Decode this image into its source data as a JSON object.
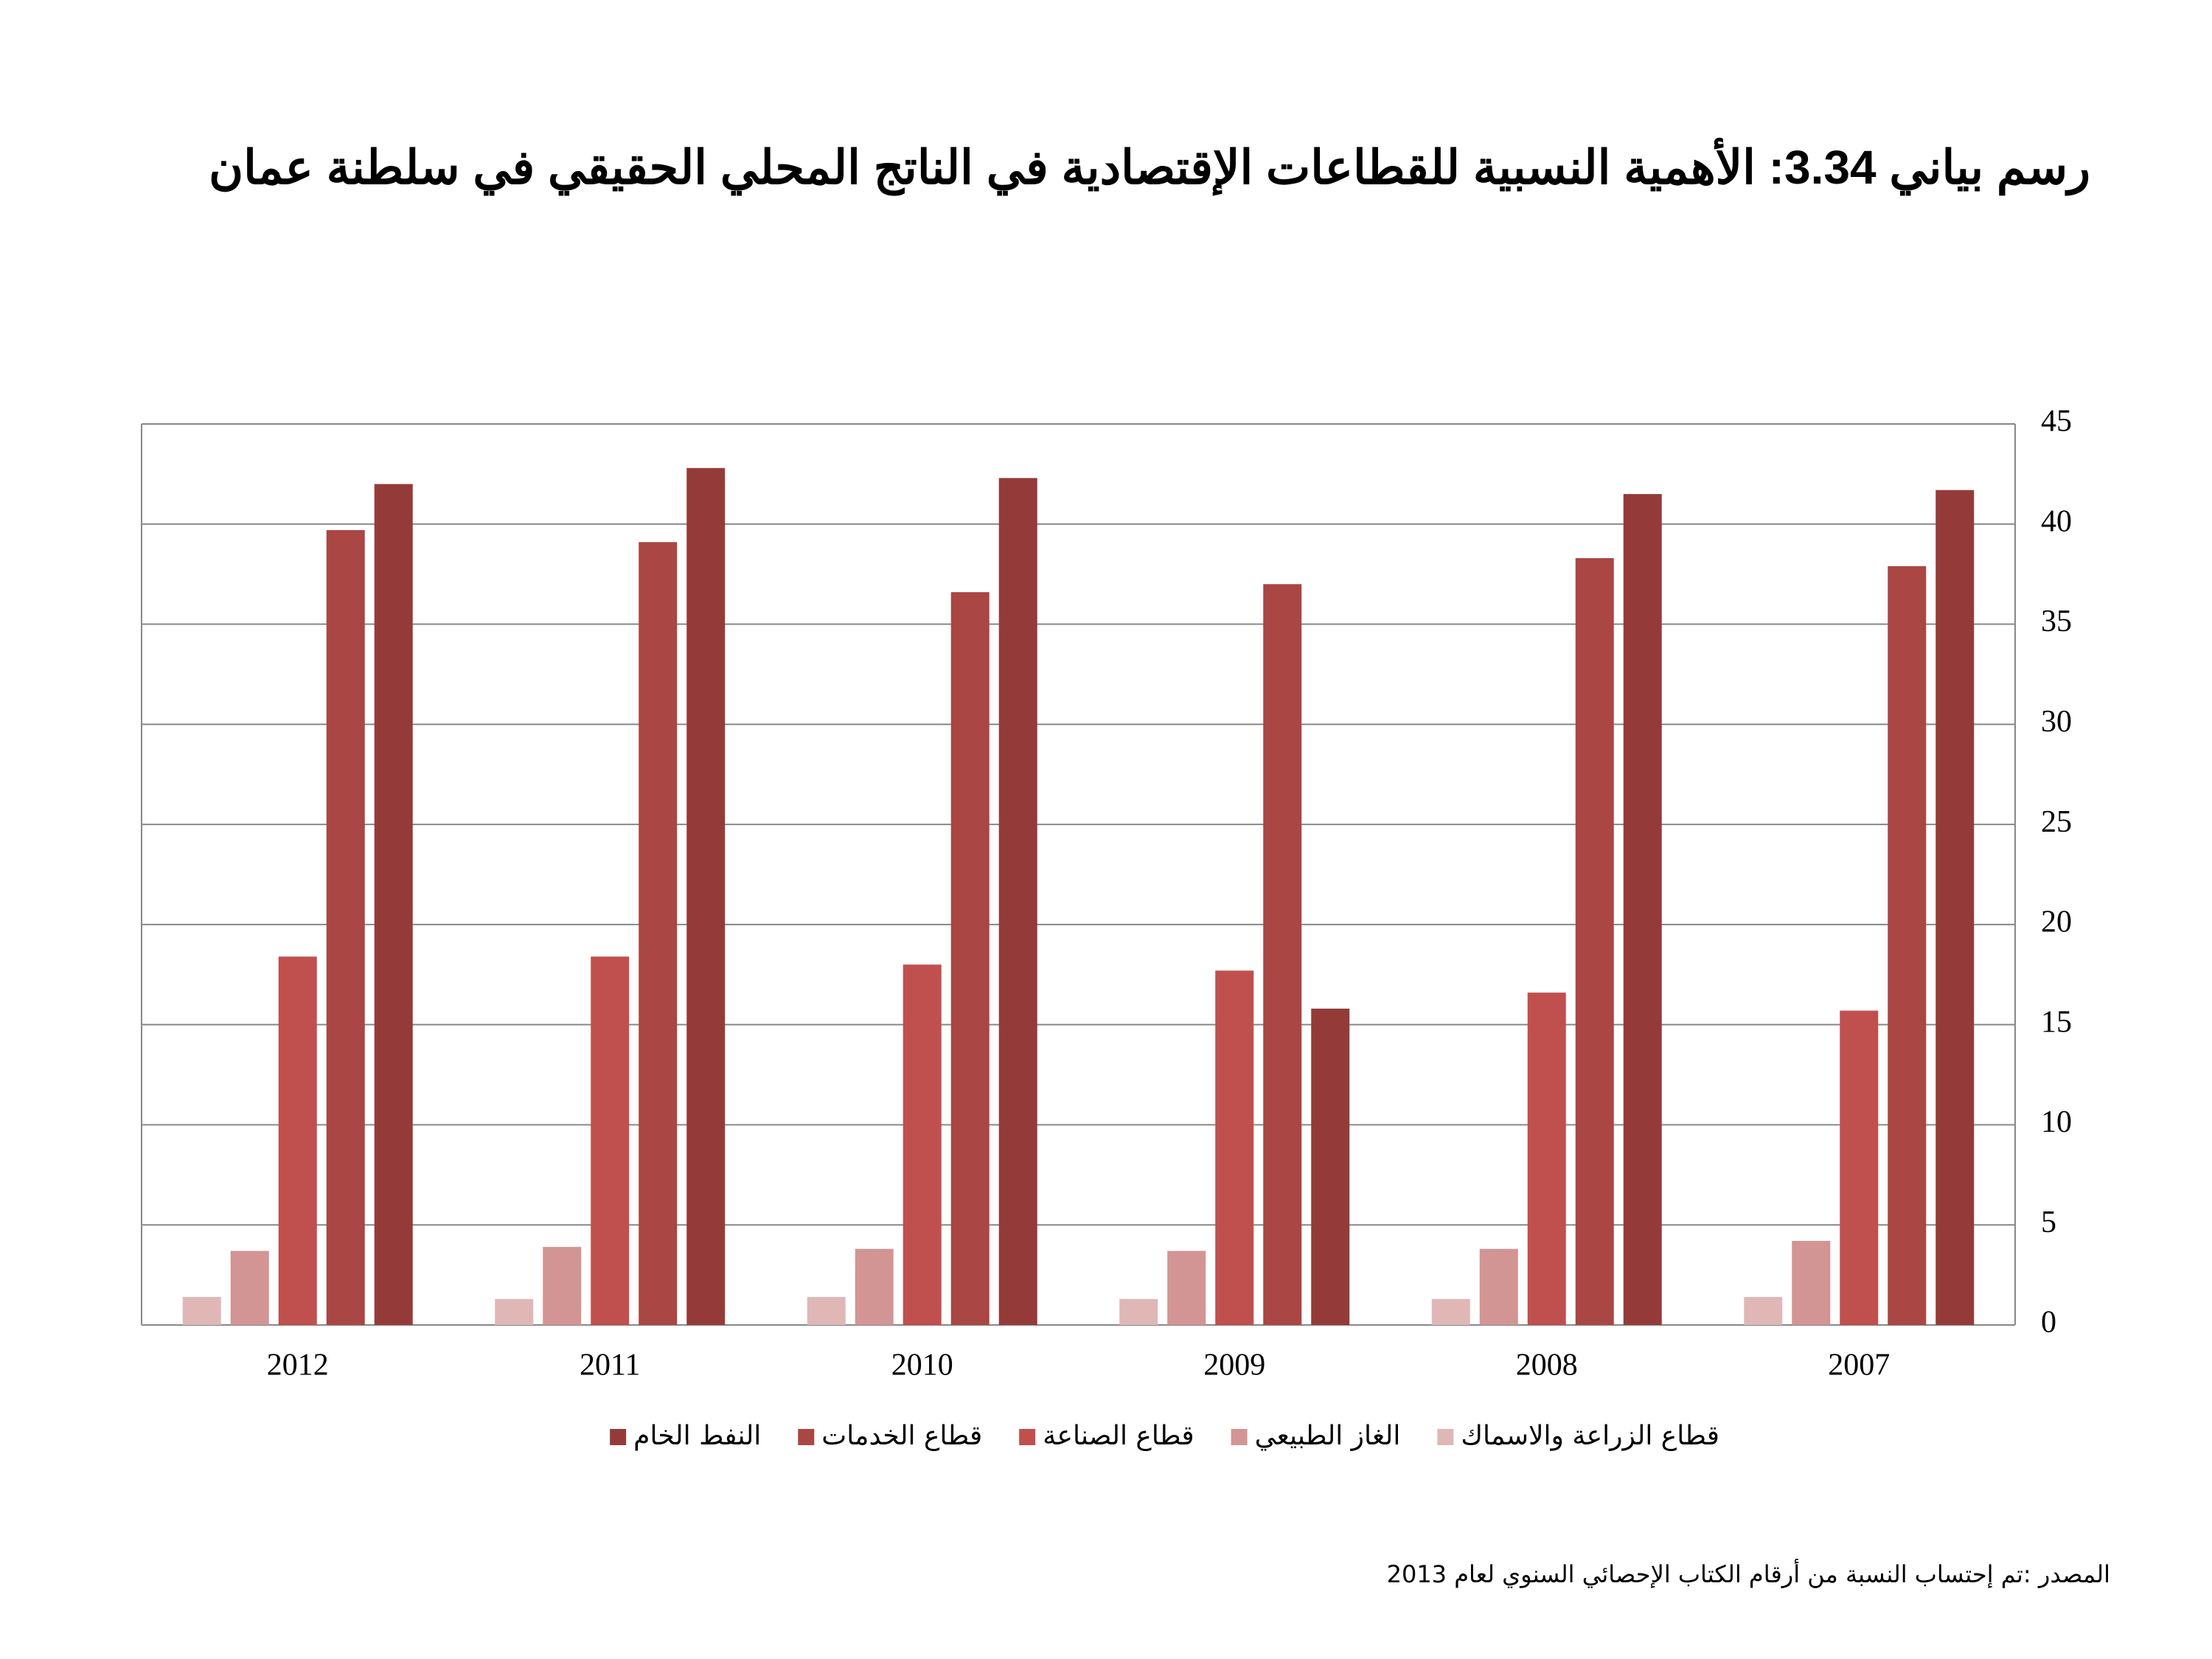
{
  "chart_data": {
    "type": "bar",
    "title": "رسم بياني 3.34: الأهمية النسبية للقطاعات الإقتصادية في الناتج المحلي الحقيقي في سلطنة عمان",
    "source": "المصدر :تم إحتساب النسبة من أرقام الكتاب الإحصائي السنوي لعام 2013",
    "categories": [
      "2012",
      "2011",
      "2010",
      "2009",
      "2008",
      "2007"
    ],
    "series": [
      {
        "name": "قطاع الزراعة والاسماك",
        "color": "#e0b7b7",
        "values": [
          1.4,
          1.3,
          1.4,
          1.3,
          1.3,
          1.4
        ]
      },
      {
        "name": "الغاز الطبيعي",
        "color": "#d39494",
        "values": [
          3.7,
          3.9,
          3.8,
          3.7,
          3.8,
          4.2
        ]
      },
      {
        "name": "قطاع الصناعة",
        "color": "#c0504d",
        "values": [
          18.4,
          18.4,
          18.0,
          17.7,
          16.6,
          15.7
        ]
      },
      {
        "name": "قطاع الخدمات",
        "color": "#aa4643",
        "values": [
          39.7,
          39.1,
          36.6,
          37.0,
          38.3,
          37.9
        ]
      },
      {
        "name": "النفط الخام",
        "color": "#943b3a",
        "values": [
          42.0,
          42.8,
          42.3,
          15.8,
          41.5,
          41.7
        ]
      }
    ],
    "ylim": [
      0,
      45
    ],
    "yticks": [
      0,
      5,
      10,
      15,
      20,
      25,
      30,
      35,
      40,
      45
    ],
    "grid": true
  }
}
